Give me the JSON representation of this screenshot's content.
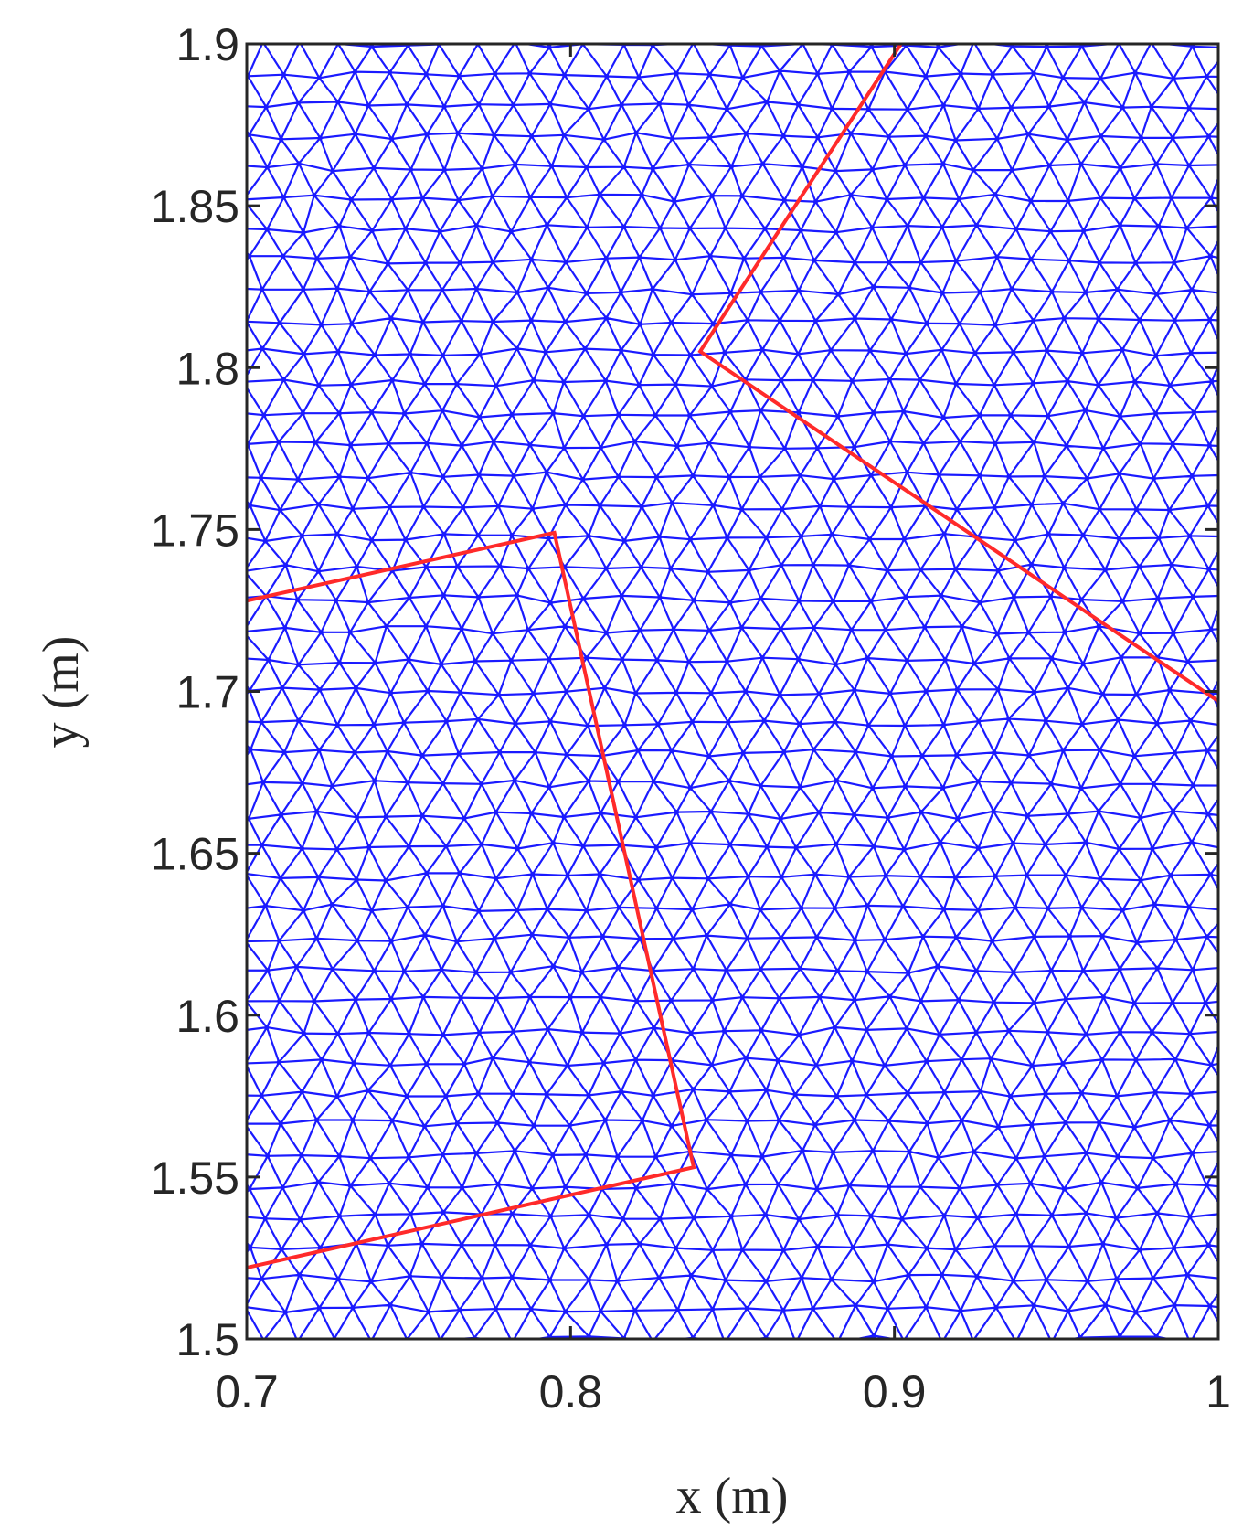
{
  "chart_data": {
    "type": "line",
    "title": "",
    "xlabel": "x (m)",
    "ylabel": "y (m)",
    "xlim": [
      0.7,
      1.0
    ],
    "ylim": [
      1.5,
      1.9
    ],
    "x_ticks": [
      0.7,
      0.8,
      0.9,
      1.0
    ],
    "x_tick_labels": [
      "0.7",
      "0.8",
      "0.9",
      "1"
    ],
    "y_ticks": [
      1.5,
      1.55,
      1.6,
      1.65,
      1.7,
      1.75,
      1.8,
      1.85,
      1.9
    ],
    "y_tick_labels": [
      "1.5",
      "1.55",
      "1.6",
      "1.65",
      "1.7",
      "1.75",
      "1.8",
      "1.85",
      "1.9"
    ],
    "grid": false,
    "background_mesh": {
      "kind": "triangular-finite-element-mesh",
      "color": "#1a1aff",
      "approx_element_size": 0.011
    },
    "series": [
      {
        "color": "#ff2a2a",
        "x": [
          0.7,
          0.795,
          0.838,
          0.7
        ],
        "y": [
          1.728,
          1.749,
          1.553,
          1.522
        ]
      },
      {
        "color": "#ff2a2a",
        "x": [
          0.902,
          0.84,
          1.0
        ],
        "y": [
          1.9,
          1.805,
          1.697
        ]
      }
    ]
  }
}
